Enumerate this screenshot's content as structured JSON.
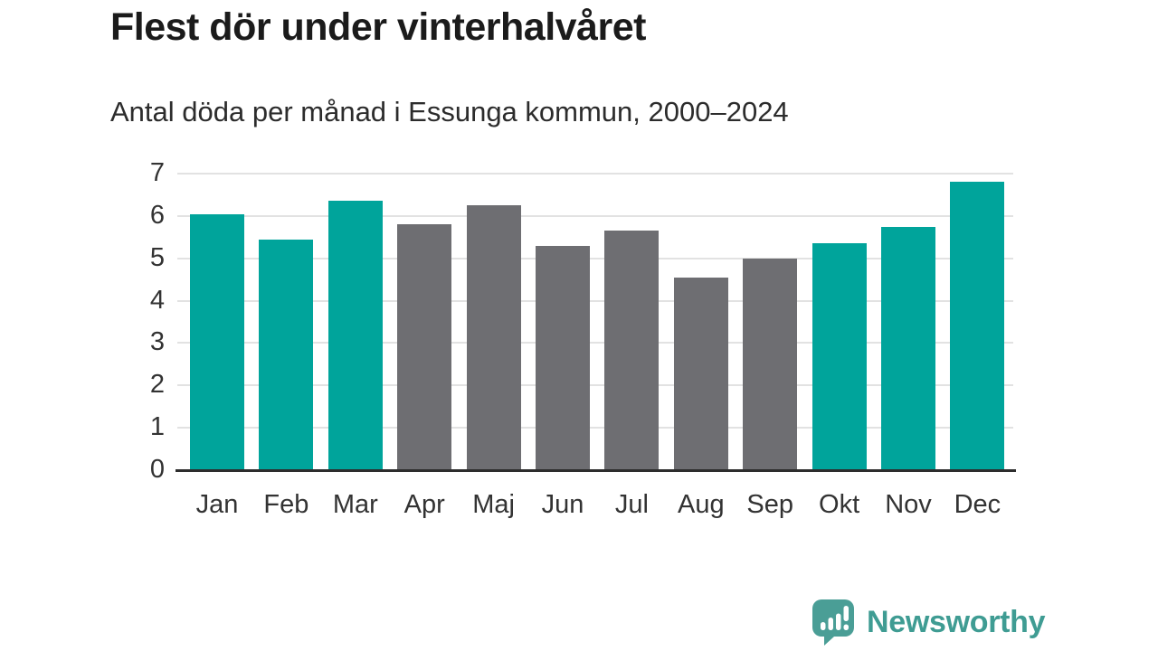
{
  "header": {
    "title": "Flest dör under vinterhalvåret",
    "subtitle": "Antal döda per månad i Essunga kommun, 2000–2024"
  },
  "chart_data": {
    "type": "bar",
    "title": "Flest dör under vinterhalvåret",
    "subtitle": "Antal döda per månad i Essunga kommun, 2000–2024",
    "categories": [
      "Jan",
      "Feb",
      "Mar",
      "Apr",
      "Maj",
      "Jun",
      "Jul",
      "Aug",
      "Sep",
      "Okt",
      "Nov",
      "Dec"
    ],
    "values": [
      6.05,
      5.45,
      6.35,
      5.8,
      6.25,
      5.3,
      5.65,
      4.55,
      5.0,
      5.35,
      5.75,
      6.8
    ],
    "bar_colors": [
      "teal",
      "teal",
      "teal",
      "gray",
      "gray",
      "gray",
      "gray",
      "gray",
      "gray",
      "teal",
      "teal",
      "teal"
    ],
    "colors": {
      "teal": "#00a49b",
      "gray": "#6e6e72"
    },
    "yticks": [
      0,
      1,
      2,
      3,
      4,
      5,
      6,
      7
    ],
    "ylim": [
      0,
      7
    ],
    "xlabel": "",
    "ylabel": "",
    "grid": "horizontal",
    "legend": "none",
    "gridline_color": "#e2e2e2",
    "baseline_color": "#2d2d2d",
    "axis_text_color": "#333333"
  },
  "footer": {
    "brand": "Newsworthy",
    "brand_color": "#3f9c93",
    "brand_icon": "bar-chart-speech-bubble-icon"
  }
}
